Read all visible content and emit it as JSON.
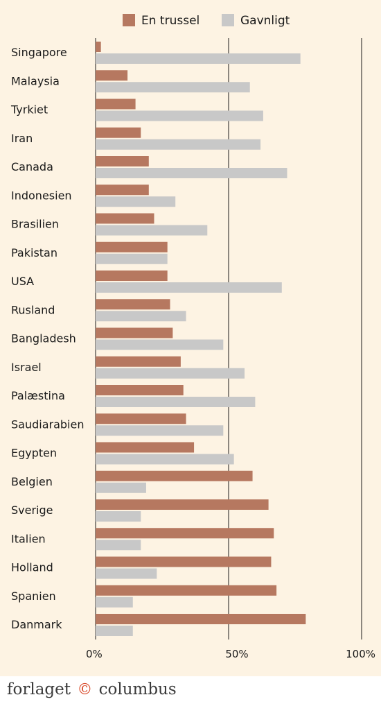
{
  "chart_data": {
    "type": "bar",
    "orientation": "horizontal",
    "categories": [
      "Singapore",
      "Malaysia",
      "Tyrkiet",
      "Iran",
      "Canada",
      "Indonesien",
      "Brasilien",
      "Pakistan",
      "USA",
      "Rusland",
      "Bangladesh",
      "Israel",
      "Palæstina",
      "Saudiarabien",
      "Egypten",
      "Belgien",
      "Sverige",
      "Italien",
      "Holland",
      "Spanien",
      "Danmark"
    ],
    "series": [
      {
        "name": "En trussel",
        "color": "#b67860",
        "values": [
          2,
          12,
          15,
          17,
          20,
          20,
          22,
          27,
          27,
          28,
          29,
          32,
          33,
          34,
          37,
          59,
          65,
          67,
          66,
          68,
          79
        ]
      },
      {
        "name": "Gavnligt",
        "color": "#c8c8c8",
        "values": [
          77,
          58,
          63,
          62,
          72,
          30,
          42,
          27,
          70,
          34,
          48,
          56,
          60,
          48,
          52,
          19,
          17,
          17,
          23,
          14,
          14
        ]
      }
    ],
    "xlim": [
      0,
      100
    ],
    "xticks": [
      "0%",
      "50%",
      "100%"
    ],
    "grid": true,
    "legend_position": "top"
  },
  "footer": {
    "brand_left": "forlaget",
    "brand_mark": "©",
    "brand_right": "columbus"
  }
}
